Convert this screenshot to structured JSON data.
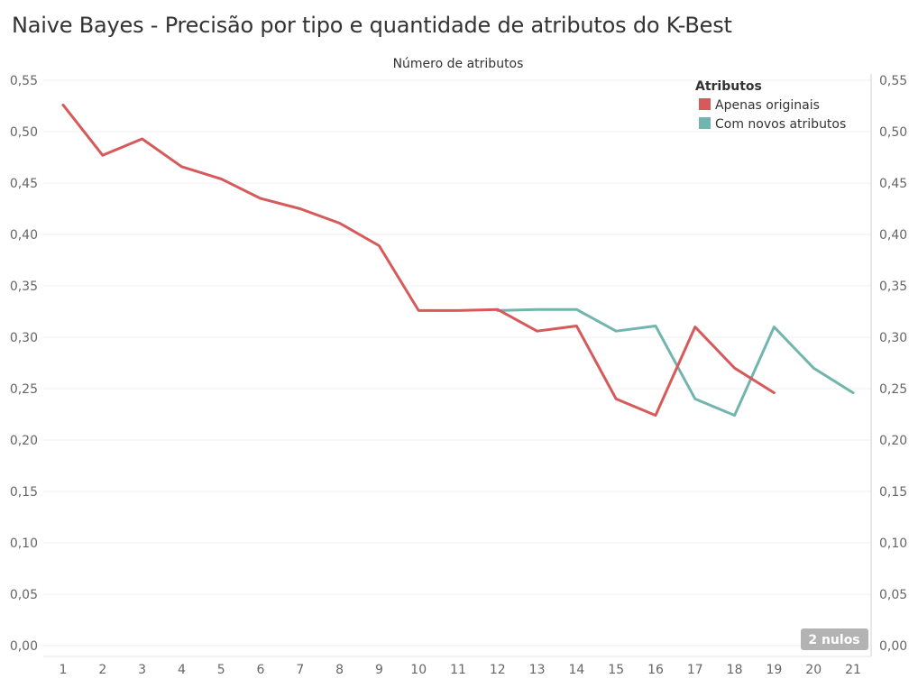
{
  "title": "Naive Bayes - Precisão por tipo e quantidade de atributos do K-Best",
  "chart_data": {
    "type": "line",
    "top_label": "Número de atributos",
    "x": [
      1,
      2,
      3,
      4,
      5,
      6,
      7,
      8,
      9,
      10,
      11,
      12,
      13,
      14,
      15,
      16,
      17,
      18,
      19,
      20,
      21
    ],
    "x_tick_labels": [
      "1",
      "2",
      "3",
      "4",
      "5",
      "6",
      "7",
      "8",
      "9",
      "10",
      "11",
      "12",
      "13",
      "14",
      "15",
      "16",
      "17",
      "18",
      "19",
      "20",
      "21"
    ],
    "ylim": [
      0,
      0.55
    ],
    "y_ticks": [
      0,
      0.05,
      0.1,
      0.15,
      0.2,
      0.25,
      0.3,
      0.35,
      0.4,
      0.45,
      0.5,
      0.55
    ],
    "y_tick_labels": [
      "0,00",
      "0,05",
      "0,10",
      "0,15",
      "0,20",
      "0,25",
      "0,30",
      "0,35",
      "0,40",
      "0,45",
      "0,50",
      "0,55"
    ],
    "grid": true,
    "legend": {
      "title": "Atributos",
      "placement": "top-right"
    },
    "series": [
      {
        "name": "Apenas originais",
        "color": "#d75a5a",
        "values": [
          0.526,
          0.477,
          0.493,
          0.466,
          0.454,
          0.435,
          0.425,
          0.411,
          0.389,
          0.326,
          0.326,
          0.327,
          0.306,
          0.311,
          0.24,
          0.224,
          0.31,
          0.27,
          0.246,
          null,
          null
        ]
      },
      {
        "name": "Com novos atributos",
        "color": "#72b5ae",
        "values": [
          null,
          null,
          null,
          null,
          null,
          null,
          null,
          null,
          null,
          null,
          null,
          0.326,
          0.327,
          0.327,
          0.306,
          0.311,
          0.24,
          0.224,
          0.31,
          0.27,
          0.246
        ]
      }
    ],
    "null_indicator": "2 nulos"
  }
}
